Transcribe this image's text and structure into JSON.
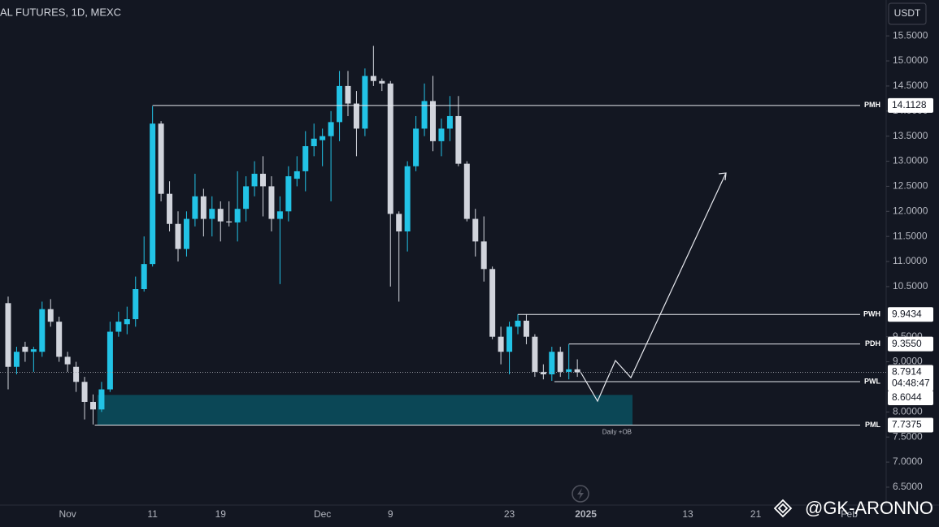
{
  "chart_data": {
    "type": "candlestick",
    "title": "AL FUTURES, 1D, MEXC",
    "currency": "USDT",
    "categories": [
      null,
      null,
      null,
      null,
      null,
      null,
      null,
      "Nov",
      null,
      null,
      null,
      null,
      null,
      null,
      null,
      null,
      null,
      "11",
      null,
      null,
      null,
      null,
      null,
      null,
      null,
      "19",
      null,
      null,
      null,
      null,
      null,
      null,
      null,
      null,
      null,
      null,
      null,
      "Dec",
      null,
      null,
      null,
      null,
      null,
      null,
      null,
      "9",
      null,
      null,
      null,
      null,
      null,
      null,
      null,
      null,
      null,
      null,
      null,
      null,
      null,
      "23",
      null,
      null,
      null,
      null,
      null,
      null,
      null,
      null,
      "2025",
      null,
      null,
      null,
      null,
      null,
      null,
      null,
      null,
      null,
      null,
      null,
      "13",
      null,
      null,
      null,
      null,
      null,
      null,
      null,
      "21",
      null,
      null,
      null,
      null,
      null,
      null,
      null,
      null,
      null,
      null,
      "Feb",
      null,
      null,
      null,
      null
    ],
    "open": [
      10.17,
      8.9,
      9.3,
      9.2,
      9.2,
      10.05,
      9.8,
      9.1,
      8.9,
      8.6,
      8.2,
      8.05,
      8.45,
      9.6,
      9.75,
      9.85,
      10.45,
      10.95,
      13.75,
      12.35,
      11.75,
      11.25,
      11.85,
      12.3,
      11.85,
      12.05,
      11.8,
      11.78,
      12.05,
      12.5,
      12.75,
      12.5,
      11.85,
      12.0,
      12.65,
      12.8,
      13.3,
      13.42,
      13.5,
      13.78,
      14.5,
      14.15,
      13.65,
      14.7,
      14.6,
      14.55,
      11.95,
      11.6,
      12.9,
      13.65,
      14.2,
      13.4,
      13.65,
      13.9,
      12.95,
      11.85,
      11.4,
      10.85,
      9.5,
      9.2,
      9.7,
      9.82,
      9.5,
      8.8,
      8.75,
      9.2,
      8.8,
      8.85,
      null,
      null,
      null,
      null,
      null,
      null,
      null,
      null,
      null,
      null,
      null,
      null,
      null,
      null,
      null,
      null,
      null,
      null,
      null,
      null,
      null,
      null,
      null,
      null,
      null,
      null,
      null,
      null,
      null,
      null,
      null,
      null,
      null,
      null,
      null,
      null
    ],
    "high": [
      10.3,
      9.3,
      9.4,
      9.3,
      10.2,
      10.25,
      9.9,
      9.2,
      9.0,
      8.7,
      8.35,
      8.6,
      9.8,
      10.0,
      10.1,
      10.7,
      11.5,
      14.1,
      13.8,
      12.6,
      12.0,
      12.0,
      12.75,
      12.45,
      12.3,
      12.2,
      12.2,
      12.8,
      12.7,
      13.0,
      13.1,
      12.7,
      12.3,
      12.9,
      13.1,
      13.6,
      13.75,
      13.65,
      14.0,
      14.8,
      14.8,
      14.4,
      14.85,
      15.3,
      14.65,
      14.6,
      12.0,
      13.0,
      13.9,
      14.55,
      14.7,
      13.85,
      14.3,
      14.3,
      13.0,
      12.05,
      11.9,
      10.9,
      9.7,
      9.8,
      9.95,
      9.95,
      9.55,
      8.95,
      9.3,
      9.3,
      9.35,
      9.05,
      null,
      null,
      null,
      null,
      null,
      null,
      null,
      null,
      null,
      null,
      null,
      null,
      null,
      null,
      null,
      null,
      null,
      null,
      null,
      null,
      null,
      null,
      null,
      null,
      null,
      null,
      null,
      null,
      null,
      null,
      null,
      null,
      null,
      null,
      null,
      null
    ],
    "low": [
      8.45,
      8.75,
      9.0,
      8.8,
      9.1,
      9.7,
      9.0,
      8.8,
      8.4,
      7.85,
      7.75,
      8.0,
      8.4,
      9.5,
      9.55,
      9.7,
      10.4,
      10.9,
      12.2,
      11.6,
      11.0,
      11.1,
      11.7,
      11.5,
      11.5,
      11.4,
      11.7,
      11.4,
      11.8,
      12.3,
      11.9,
      11.6,
      10.55,
      11.8,
      12.5,
      12.4,
      13.1,
      12.9,
      12.2,
      13.4,
      13.9,
      13.1,
      13.5,
      14.5,
      14.4,
      10.5,
      10.2,
      11.2,
      12.8,
      13.5,
      13.2,
      13.1,
      13.4,
      12.9,
      11.8,
      11.1,
      10.6,
      9.45,
      8.95,
      8.75,
      9.55,
      9.35,
      8.7,
      8.65,
      8.62,
      8.7,
      8.65,
      8.7,
      null,
      null,
      null,
      null,
      null,
      null,
      null,
      null,
      null,
      null,
      null,
      null,
      null,
      null,
      null,
      null,
      null,
      null,
      null,
      null,
      null,
      null,
      null,
      null,
      null,
      null,
      null,
      null,
      null,
      null,
      null,
      null,
      null,
      null,
      null,
      null
    ],
    "close": [
      8.9,
      9.2,
      9.2,
      9.25,
      10.05,
      9.8,
      9.1,
      8.95,
      8.6,
      8.2,
      8.05,
      8.45,
      9.6,
      9.8,
      9.85,
      10.45,
      10.95,
      13.75,
      12.35,
      11.75,
      11.25,
      11.85,
      12.3,
      11.85,
      12.05,
      11.8,
      11.78,
      12.05,
      12.5,
      12.75,
      12.5,
      11.85,
      12.0,
      12.7,
      12.8,
      13.3,
      13.45,
      13.5,
      13.78,
      14.5,
      14.15,
      13.65,
      14.7,
      14.6,
      14.55,
      11.95,
      11.6,
      12.9,
      13.65,
      14.2,
      13.4,
      13.65,
      13.9,
      12.95,
      11.85,
      11.4,
      10.85,
      9.5,
      9.2,
      9.7,
      9.82,
      9.5,
      8.8,
      8.75,
      9.2,
      8.8,
      8.85,
      8.7914,
      null,
      null,
      null,
      null,
      null,
      null,
      null,
      null,
      null,
      null,
      null,
      null,
      null,
      null,
      null,
      null,
      null,
      null,
      null,
      null,
      null,
      null,
      null,
      null,
      null,
      null,
      null,
      null,
      null,
      null,
      null,
      null,
      null,
      null,
      null,
      null
    ],
    "up_color": "#22c3e6",
    "down_color": "#d1d4dc",
    "ylim": [
      6.143,
      16.215
    ],
    "yticks": [
      {
        "value": 6.5,
        "label": "6.5000"
      },
      {
        "value": 7,
        "label": "7.0000"
      },
      {
        "value": 7.5,
        "label": "7.5000"
      },
      {
        "value": 8,
        "label": "8.0000"
      },
      {
        "value": 9,
        "label": "9.0000"
      },
      {
        "value": 9.5,
        "label": "9.5000"
      },
      {
        "value": 10.5,
        "label": "10.5000"
      },
      {
        "value": 11,
        "label": "11.0000"
      },
      {
        "value": 11.5,
        "label": "11.5000"
      },
      {
        "value": 12,
        "label": "12.0000"
      },
      {
        "value": 12.5,
        "label": "12.5000"
      },
      {
        "value": 13,
        "label": "13.0000"
      },
      {
        "value": 13.5,
        "label": "13.5000"
      },
      {
        "value": 14,
        "label": "14.0000"
      },
      {
        "value": 14.5,
        "label": "14.5000"
      },
      {
        "value": 15,
        "label": "15.0000"
      },
      {
        "value": 15.5,
        "label": "15.5000"
      }
    ],
    "levels": [
      {
        "name": "PMH",
        "value": 14.1128
      },
      {
        "name": "PWH",
        "value": 9.9434
      },
      {
        "name": "PDH",
        "value": 9.355,
        "label": "9.3550"
      },
      {
        "name": "PWL",
        "value": 8.6044
      },
      {
        "name": "PML",
        "value": 7.7375
      }
    ],
    "zone": {
      "label": "Daily +OB",
      "ylim": [
        7.7375,
        8.34
      ],
      "color": "#0b4a5a"
    },
    "last_price": 8.7914,
    "countdown": "04:48:47",
    "watermark": "@GK-ARONNO"
  }
}
